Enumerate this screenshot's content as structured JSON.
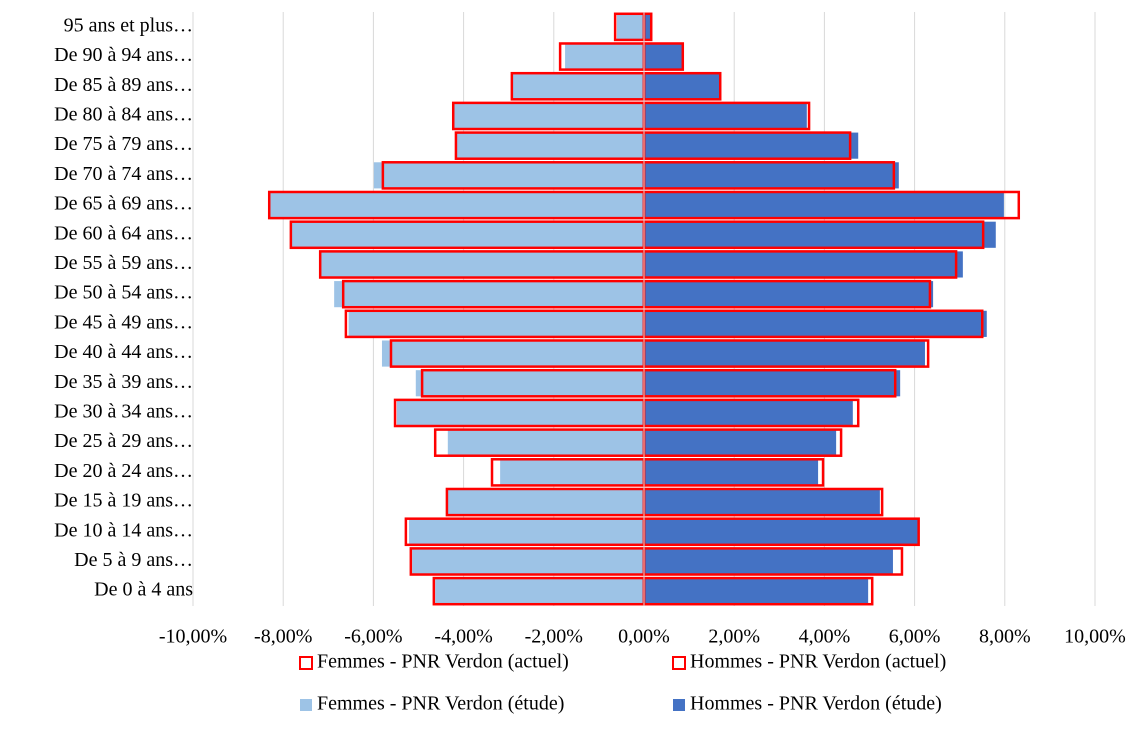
{
  "chart_data": {
    "type": "pyramid",
    "categories": [
      "De 0 à 4 ans",
      "De 5 à 9 ans…",
      "De 10 à 14 ans…",
      "De 15 à 19 ans…",
      "De 20 à 24 ans…",
      "De 25 à 29 ans…",
      "De 30 à 34 ans…",
      "De 35 à 39 ans…",
      "De 40 à 44 ans…",
      "De 45 à 49 ans…",
      "De 50 à 54 ans…",
      "De 55 à 59 ans…",
      "De 60 à 64 ans…",
      "De 65 à 69 ans…",
      "De 70 à 74 ans…",
      "De 75 à 79 ans…",
      "De 80 à 84 ans…",
      "De 85 à 89 ans…",
      "De 90 à 94 ans…",
      "95 ans et plus…"
    ],
    "series": [
      {
        "name": "Femmes - PNR Verdon (actuel)",
        "color": "#ff0000",
        "kind": "outline",
        "values": [
          -4.66,
          -5.17,
          -5.28,
          -4.37,
          -3.37,
          -4.63,
          -5.52,
          -4.92,
          -5.61,
          -6.61,
          -6.67,
          -7.18,
          -7.83,
          -8.31,
          -5.79,
          -4.17,
          -4.23,
          -2.93,
          -1.86,
          -0.64
        ]
      },
      {
        "name": "Hommes - PNR Verdon (actuel)",
        "color": "#ff0000",
        "kind": "outline",
        "values": [
          5.06,
          5.72,
          6.09,
          5.28,
          3.97,
          4.37,
          4.75,
          5.57,
          6.3,
          7.5,
          6.34,
          6.92,
          7.52,
          8.31,
          5.54,
          4.57,
          3.66,
          1.69,
          0.86,
          0.16
        ]
      },
      {
        "name": "Femmes - PNR Verdon (étude)",
        "color": "#9dc3e6",
        "kind": "filled",
        "values": [
          -4.63,
          -5.14,
          -5.21,
          -4.37,
          -3.19,
          -4.35,
          -5.48,
          -5.06,
          -5.81,
          -6.55,
          -6.87,
          -7.18,
          -7.83,
          -8.31,
          -5.99,
          -4.15,
          -4.21,
          -2.93,
          -1.75,
          -0.6
        ]
      },
      {
        "name": "Hommes - PNR Verdon (étude)",
        "color": "#4472c4",
        "kind": "filled",
        "values": [
          4.97,
          5.52,
          6.09,
          5.23,
          3.86,
          4.26,
          4.63,
          5.68,
          6.23,
          7.6,
          6.41,
          7.07,
          7.8,
          7.98,
          5.65,
          4.75,
          3.61,
          1.69,
          0.84,
          0.16
        ]
      }
    ],
    "xlim": [
      -10,
      10
    ],
    "xticks": [
      {
        "value": -10,
        "label": "-10,00%"
      },
      {
        "value": -8,
        "label": "-8,00%"
      },
      {
        "value": -6,
        "label": "-6,00%"
      },
      {
        "value": -4,
        "label": "-4,00%"
      },
      {
        "value": -2,
        "label": "-2,00%"
      },
      {
        "value": 0,
        "label": "0,00%"
      },
      {
        "value": 2,
        "label": "2,00%"
      },
      {
        "value": 4,
        "label": "4,00%"
      },
      {
        "value": 6,
        "label": "6,00%"
      },
      {
        "value": 8,
        "label": "8,00%"
      },
      {
        "value": 10,
        "label": "10,00%"
      }
    ],
    "grid": true
  }
}
